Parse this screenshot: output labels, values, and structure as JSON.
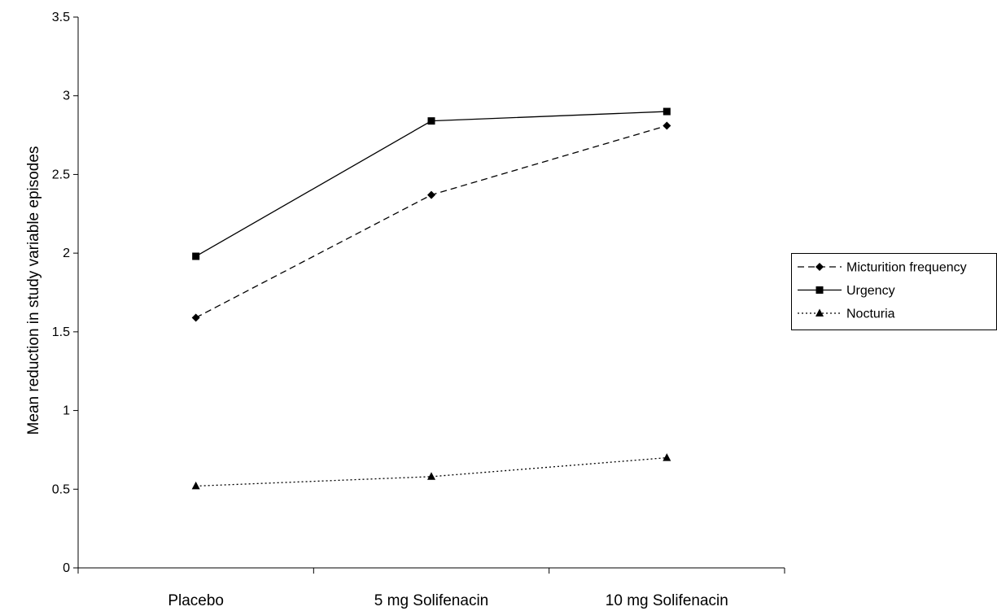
{
  "chart_data": {
    "type": "line",
    "title": "",
    "xlabel": "",
    "ylabel": "Mean reduction in study variable episodes",
    "categories": [
      "Placebo",
      "5 mg Solifenacin",
      "10 mg Solifenacin"
    ],
    "ylim": [
      0,
      3.5
    ],
    "yticks": [
      "0",
      "0.5",
      "1",
      "1.5",
      "2",
      "2.5",
      "3",
      "3.5"
    ],
    "grid": false,
    "legend_position": "right",
    "series": [
      {
        "name": "Micturition frequency",
        "values": [
          1.59,
          2.37,
          2.81
        ],
        "line_style": "dashed",
        "marker": "diamond",
        "color": "#000000"
      },
      {
        "name": "Urgency",
        "values": [
          1.98,
          2.84,
          2.9
        ],
        "line_style": "solid",
        "marker": "square",
        "color": "#000000"
      },
      {
        "name": "Nocturia",
        "values": [
          0.52,
          0.58,
          0.7
        ],
        "line_style": "dotted",
        "marker": "triangle",
        "color": "#000000"
      }
    ]
  }
}
